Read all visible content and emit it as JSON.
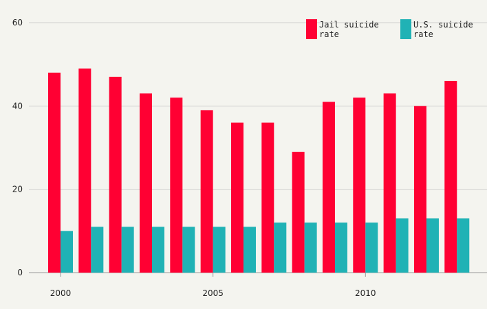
{
  "chart_data": {
    "type": "bar",
    "title": "",
    "xlabel": "",
    "ylabel": "",
    "x": [
      2000,
      2001,
      2002,
      2003,
      2004,
      2005,
      2006,
      2007,
      2008,
      2009,
      2010,
      2011,
      2012,
      2013
    ],
    "x_ticks": [
      "2000",
      "2005",
      "2010"
    ],
    "y_ticks": [
      "0",
      "20",
      "40",
      "60"
    ],
    "ylim": [
      0,
      60
    ],
    "grid": "horizontal",
    "legend_position": "top-right",
    "series": [
      {
        "name": "Jail suicide rate",
        "legend_lines": [
          "Jail suicide",
          "rate"
        ],
        "color": "#ff0033",
        "values": [
          48,
          49,
          47,
          43,
          42,
          39,
          36,
          36,
          29,
          41,
          42,
          43,
          40,
          46
        ]
      },
      {
        "name": "U.S. suicide rate",
        "legend_lines": [
          "U.S. suicide",
          "rate"
        ],
        "color": "#20b2b5",
        "values": [
          10,
          11,
          11,
          11,
          11,
          11,
          11,
          12,
          12,
          12,
          12,
          13,
          13,
          13
        ]
      }
    ]
  }
}
